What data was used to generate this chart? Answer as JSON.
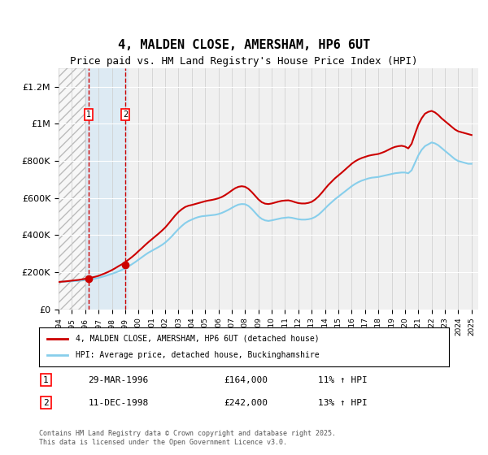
{
  "title": "4, MALDEN CLOSE, AMERSHAM, HP6 6UT",
  "subtitle": "Price paid vs. HM Land Registry's House Price Index (HPI)",
  "ylabel_ticks": [
    "£0",
    "£200K",
    "£400K",
    "£600K",
    "£800K",
    "£1M",
    "£1.2M"
  ],
  "ytick_values": [
    0,
    200000,
    400000,
    600000,
    800000,
    1000000,
    1200000
  ],
  "ylim": [
    0,
    1300000
  ],
  "xlim_start": 1994.0,
  "xlim_end": 2025.5,
  "hpi_color": "#87CEEB",
  "price_color": "#CC0000",
  "transaction1_date": "29-MAR-1996",
  "transaction1_price": 164000,
  "transaction1_pct": "11%",
  "transaction2_date": "11-DEC-1998",
  "transaction2_price": 242000,
  "transaction2_pct": "13%",
  "legend_line1": "4, MALDEN CLOSE, AMERSHAM, HP6 6UT (detached house)",
  "legend_line2": "HPI: Average price, detached house, Buckinghamshire",
  "footer": "Contains HM Land Registry data © Crown copyright and database right 2025.\nThis data is licensed under the Open Government Licence v3.0.",
  "hpi_x": [
    1994.0,
    1994.25,
    1994.5,
    1994.75,
    1995.0,
    1995.25,
    1995.5,
    1995.75,
    1996.0,
    1996.25,
    1996.5,
    1996.75,
    1997.0,
    1997.25,
    1997.5,
    1997.75,
    1998.0,
    1998.25,
    1998.5,
    1998.75,
    1999.0,
    1999.25,
    1999.5,
    1999.75,
    2000.0,
    2000.25,
    2000.5,
    2000.75,
    2001.0,
    2001.25,
    2001.5,
    2001.75,
    2002.0,
    2002.25,
    2002.5,
    2002.75,
    2003.0,
    2003.25,
    2003.5,
    2003.75,
    2004.0,
    2004.25,
    2004.5,
    2004.75,
    2005.0,
    2005.25,
    2005.5,
    2005.75,
    2006.0,
    2006.25,
    2006.5,
    2006.75,
    2007.0,
    2007.25,
    2007.5,
    2007.75,
    2008.0,
    2008.25,
    2008.5,
    2008.75,
    2009.0,
    2009.25,
    2009.5,
    2009.75,
    2010.0,
    2010.25,
    2010.5,
    2010.75,
    2011.0,
    2011.25,
    2011.5,
    2011.75,
    2012.0,
    2012.25,
    2012.5,
    2012.75,
    2013.0,
    2013.25,
    2013.5,
    2013.75,
    2014.0,
    2014.25,
    2014.5,
    2014.75,
    2015.0,
    2015.25,
    2015.5,
    2015.75,
    2016.0,
    2016.25,
    2016.5,
    2016.75,
    2017.0,
    2017.25,
    2017.5,
    2017.75,
    2018.0,
    2018.25,
    2018.5,
    2018.75,
    2019.0,
    2019.25,
    2019.5,
    2019.75,
    2020.0,
    2020.25,
    2020.5,
    2020.75,
    2021.0,
    2021.25,
    2021.5,
    2021.75,
    2022.0,
    2022.25,
    2022.5,
    2022.75,
    2023.0,
    2023.25,
    2023.5,
    2023.75,
    2024.0,
    2024.25,
    2024.5,
    2024.75,
    2025.0
  ],
  "hpi_y": [
    148000,
    149000,
    150000,
    151000,
    152000,
    153000,
    154000,
    156000,
    158000,
    160000,
    163000,
    166000,
    170000,
    175000,
    180000,
    186000,
    192000,
    198000,
    205000,
    213000,
    222000,
    232000,
    243000,
    255000,
    268000,
    281000,
    294000,
    306000,
    316000,
    326000,
    336000,
    347000,
    360000,
    376000,
    394000,
    414000,
    433000,
    450000,
    465000,
    476000,
    484000,
    492000,
    498000,
    502000,
    504000,
    506000,
    508000,
    510000,
    514000,
    520000,
    528000,
    537000,
    547000,
    557000,
    565000,
    568000,
    567000,
    558000,
    542000,
    522000,
    502000,
    488000,
    480000,
    477000,
    480000,
    484000,
    488000,
    492000,
    494000,
    496000,
    494000,
    490000,
    486000,
    484000,
    484000,
    486000,
    490000,
    498000,
    510000,
    526000,
    544000,
    562000,
    578000,
    594000,
    608000,
    622000,
    636000,
    650000,
    664000,
    676000,
    686000,
    694000,
    700000,
    706000,
    710000,
    712000,
    714000,
    718000,
    722000,
    726000,
    730000,
    734000,
    736000,
    738000,
    738000,
    734000,
    750000,
    790000,
    830000,
    860000,
    880000,
    890000,
    900000,
    895000,
    885000,
    870000,
    855000,
    840000,
    825000,
    810000,
    800000,
    795000,
    790000,
    785000,
    785000
  ],
  "price_x": [
    1994.0,
    1994.25,
    1994.5,
    1994.75,
    1995.0,
    1995.25,
    1995.5,
    1995.75,
    1996.0,
    1996.25,
    1996.5,
    1996.75,
    1997.0,
    1997.25,
    1997.5,
    1997.75,
    1998.0,
    1998.25,
    1998.5,
    1998.75,
    1999.0,
    1999.25,
    1999.5,
    1999.75,
    2000.0,
    2000.25,
    2000.5,
    2000.75,
    2001.0,
    2001.25,
    2001.5,
    2001.75,
    2002.0,
    2002.25,
    2002.5,
    2002.75,
    2003.0,
    2003.25,
    2003.5,
    2003.75,
    2004.0,
    2004.25,
    2004.5,
    2004.75,
    2005.0,
    2005.25,
    2005.5,
    2005.75,
    2006.0,
    2006.25,
    2006.5,
    2006.75,
    2007.0,
    2007.25,
    2007.5,
    2007.75,
    2008.0,
    2008.25,
    2008.5,
    2008.75,
    2009.0,
    2009.25,
    2009.5,
    2009.75,
    2010.0,
    2010.25,
    2010.5,
    2010.75,
    2011.0,
    2011.25,
    2011.5,
    2011.75,
    2012.0,
    2012.25,
    2012.5,
    2012.75,
    2013.0,
    2013.25,
    2013.5,
    2013.75,
    2014.0,
    2014.25,
    2014.5,
    2014.75,
    2015.0,
    2015.25,
    2015.5,
    2015.75,
    2016.0,
    2016.25,
    2016.5,
    2016.75,
    2017.0,
    2017.25,
    2017.5,
    2017.75,
    2018.0,
    2018.25,
    2018.5,
    2018.75,
    2019.0,
    2019.25,
    2019.5,
    2019.75,
    2020.0,
    2020.25,
    2020.5,
    2020.75,
    2021.0,
    2021.25,
    2021.5,
    2021.75,
    2022.0,
    2022.25,
    2022.5,
    2022.75,
    2023.0,
    2023.25,
    2023.5,
    2023.75,
    2024.0,
    2024.25,
    2024.5,
    2024.75,
    2025.0
  ],
  "price_y": [
    148000,
    149500,
    151000,
    153000,
    155000,
    157000,
    159000,
    162000,
    165000,
    168000,
    172000,
    176000,
    181000,
    188000,
    195000,
    203000,
    212000,
    222000,
    233000,
    243000,
    255000,
    268000,
    282000,
    297000,
    314000,
    330000,
    347000,
    363000,
    378000,
    393000,
    408000,
    424000,
    441000,
    462000,
    484000,
    506000,
    525000,
    540000,
    552000,
    559000,
    563000,
    568000,
    573000,
    578000,
    583000,
    587000,
    590000,
    594000,
    599000,
    606000,
    616000,
    628000,
    641000,
    653000,
    661000,
    664000,
    661000,
    650000,
    633000,
    613000,
    593000,
    578000,
    570000,
    568000,
    571000,
    576000,
    581000,
    585000,
    587000,
    588000,
    584000,
    578000,
    573000,
    571000,
    571000,
    574000,
    580000,
    592000,
    608000,
    628000,
    650000,
    671000,
    689000,
    707000,
    722000,
    737000,
    753000,
    769000,
    785000,
    798000,
    808000,
    816000,
    822000,
    828000,
    832000,
    835000,
    838000,
    844000,
    851000,
    860000,
    869000,
    876000,
    880000,
    882000,
    878000,
    868000,
    893000,
    945000,
    995000,
    1030000,
    1055000,
    1065000,
    1070000,
    1062000,
    1048000,
    1030000,
    1015000,
    1000000,
    985000,
    970000,
    960000,
    955000,
    950000,
    945000,
    940000
  ],
  "t1_x": 1996.25,
  "t1_y": 164000,
  "t2_x": 1999.0,
  "t2_y": 242000,
  "hatch_x1": 1994.0,
  "hatch_x2": 1996.0,
  "shade_x1": 1996.0,
  "shade_x2": 1999.25,
  "background_color": "#ffffff",
  "plot_bg_color": "#f0f0f0"
}
